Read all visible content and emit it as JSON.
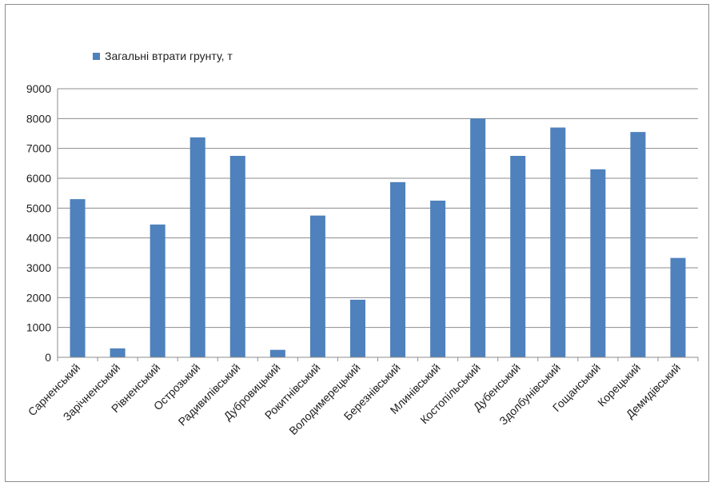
{
  "chart_data": {
    "type": "bar",
    "title": "",
    "xlabel": "",
    "ylabel": "",
    "ylim": [
      0,
      9000
    ],
    "yticks": [
      0,
      1000,
      2000,
      3000,
      4000,
      5000,
      6000,
      7000,
      8000,
      9000
    ],
    "grid": true,
    "legend_position": "top-left",
    "categories": [
      "Сарненський",
      "Зарічненський",
      "Рівненський",
      "Острозький",
      "Радивилівський",
      "Дубровицький",
      "Рокитнівський",
      "Володимерецький",
      "Березнівський",
      "Млинівський",
      "Костопільський",
      "Дубенський",
      "Здолбунівський",
      "Гощанський",
      "Корецький",
      "Демидівський"
    ],
    "series": [
      {
        "name": "Загальні втрати грунту, т",
        "color": "#4f81bd",
        "values": [
          5300,
          300,
          4450,
          7370,
          6750,
          250,
          4750,
          1930,
          5870,
          5250,
          8000,
          6750,
          7700,
          6300,
          7550,
          3330
        ]
      }
    ]
  }
}
